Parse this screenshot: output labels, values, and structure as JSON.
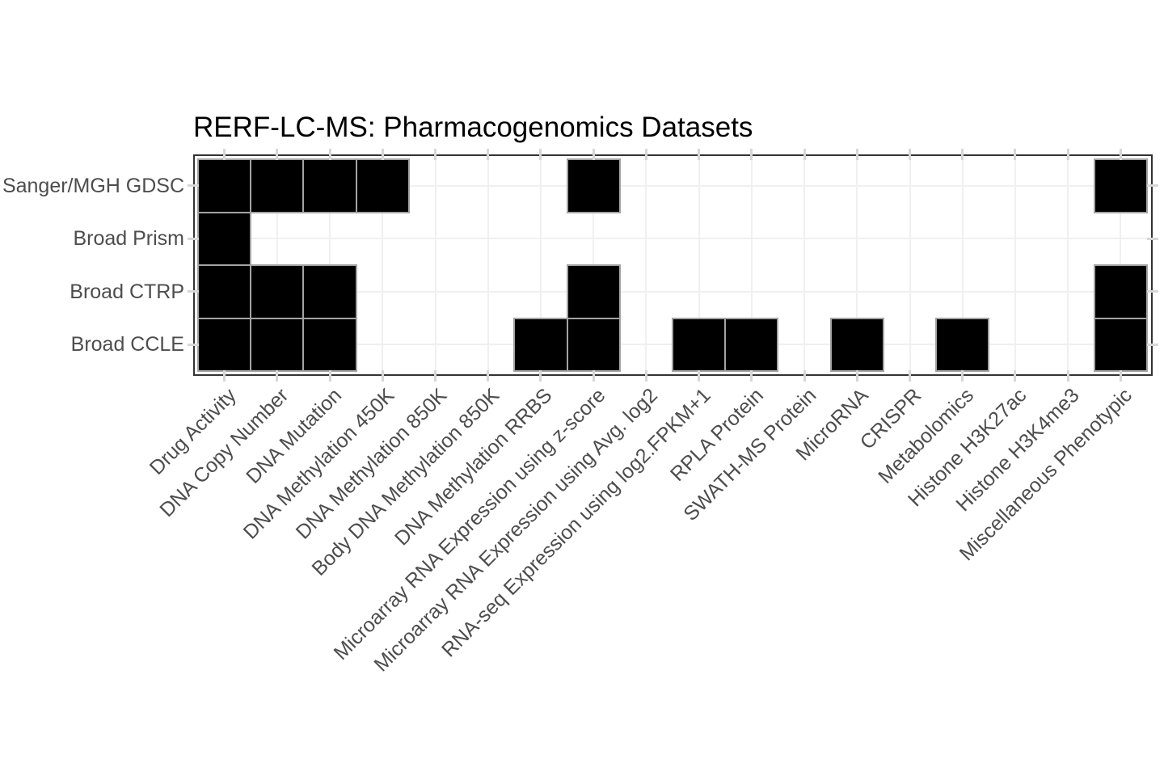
{
  "chart_data": {
    "type": "heatmap",
    "title": "RERF-LC-MS: Pharmacogenomics Datasets",
    "rows": [
      "Sanger/MGH GDSC",
      "Broad Prism",
      "Broad CTRP",
      "Broad CCLE"
    ],
    "columns": [
      "Drug Activity",
      "DNA Copy Number",
      "DNA Mutation",
      "DNA Methylation 450K",
      "DNA Methylation 850K",
      "Body DNA Methylation 850K",
      "DNA Methylation RRBS",
      "Microarray RNA Expression using z-score",
      "Microarray RNA Expression using Avg. log2",
      "RNA-seq Expression using log2.FPKM+1",
      "RPLA Protein",
      "SWATH-MS Protein",
      "MicroRNA",
      "CRISPR",
      "Metabolomics",
      "Histone H3K27ac",
      "Histone H3K4me3",
      "Miscellaneous Phenotypic"
    ],
    "presence": [
      [
        1,
        1,
        1,
        1,
        0,
        0,
        0,
        1,
        0,
        0,
        0,
        0,
        0,
        0,
        0,
        0,
        0,
        1
      ],
      [
        1,
        0,
        0,
        0,
        0,
        0,
        0,
        0,
        0,
        0,
        0,
        0,
        0,
        0,
        0,
        0,
        0,
        0
      ],
      [
        1,
        1,
        1,
        0,
        0,
        0,
        0,
        1,
        0,
        0,
        0,
        0,
        0,
        0,
        0,
        0,
        0,
        1
      ],
      [
        1,
        1,
        1,
        0,
        0,
        0,
        1,
        1,
        0,
        1,
        1,
        0,
        1,
        0,
        1,
        0,
        0,
        1
      ]
    ],
    "x_label_angle_deg": 45,
    "legend": "none",
    "grid": "category-center gridlines, ticks on all four sides",
    "colors": {
      "present": "#000000",
      "absent": "#ffffff",
      "tile_border": "#a3a3a3",
      "panel_border": "#333333",
      "gridline": "#f0f0f0",
      "tick": "#d7d7d7",
      "axis_text": "#4d4d4d",
      "title_text": "#000000"
    }
  }
}
